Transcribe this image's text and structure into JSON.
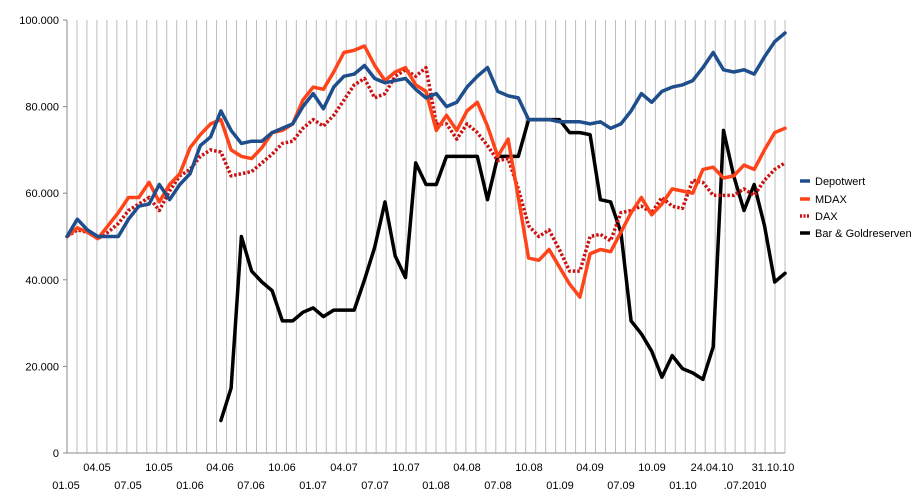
{
  "chart_data": {
    "type": "line",
    "title": "",
    "xlabel": "",
    "ylabel": "",
    "ylim": [
      0,
      100000
    ],
    "y_ticks": [
      "0",
      "20.000",
      "40.000",
      "60.000",
      "80.000",
      "100.000"
    ],
    "grid": "vertical",
    "legend_position": "right",
    "x_labels_upper": [
      "04.05",
      "10.05",
      "04.06",
      "10.06",
      "04.07",
      "10.07",
      "04.08",
      "10.08",
      "04.09",
      "10.09",
      "24.04.10",
      "31.10.10"
    ],
    "x_labels_lower": [
      "01.05",
      "07.05",
      "01.06",
      "07.06",
      "01.07",
      "07.07",
      "01.08",
      "07.08",
      "01.09",
      "07.09",
      "01.10",
      ".07.2010"
    ],
    "series": [
      {
        "name": "Depotwert",
        "color": "#1f4e8c",
        "style": "solid",
        "values": [
          50000,
          54000,
          51500,
          50000,
          50000,
          50000,
          54000,
          57000,
          57500,
          62000,
          58500,
          62000,
          64500,
          71000,
          73000,
          79000,
          74500,
          71500,
          72000,
          72000,
          74000,
          75000,
          76000,
          80000,
          83000,
          79500,
          84500,
          87000,
          87500,
          89500,
          86500,
          85500,
          86000,
          86500,
          84000,
          82000,
          83000,
          80000,
          81000,
          84500,
          87000,
          89000,
          83500,
          82500,
          82000,
          77000,
          77000,
          77000,
          76500,
          76500,
          76500,
          76000,
          76500,
          75000,
          76000,
          79000,
          83000,
          81000,
          83500,
          84500,
          85000,
          86000,
          89000,
          92500,
          88500,
          88000,
          88500,
          87500,
          91500,
          95000,
          97000
        ]
      },
      {
        "name": "MDAX",
        "color": "#ff4419",
        "style": "solid",
        "values": [
          50000,
          52000,
          51000,
          49500,
          52500,
          55500,
          59000,
          59000,
          62500,
          58000,
          62000,
          64500,
          70500,
          73500,
          76000,
          77000,
          70000,
          68500,
          68000,
          70500,
          74000,
          74500,
          76000,
          81500,
          84500,
          84000,
          88000,
          92500,
          93000,
          94000,
          89500,
          86000,
          88000,
          89000,
          85000,
          83500,
          74500,
          78000,
          74500,
          79000,
          81000,
          75500,
          68500,
          72500,
          59000,
          45000,
          44500,
          47000,
          43000,
          39000,
          36000,
          46000,
          47000,
          46500,
          51000,
          55500,
          59000,
          55000,
          57500,
          61000,
          60500,
          60000,
          65500,
          66000,
          63500,
          64000,
          66500,
          65500,
          70000,
          74000,
          75000
        ]
      },
      {
        "name": "DAX",
        "color": "#cc1111",
        "style": "dotted",
        "values": [
          50000,
          51500,
          51000,
          49500,
          51000,
          53000,
          56000,
          57500,
          59000,
          56000,
          60500,
          64000,
          65500,
          68500,
          70000,
          69500,
          64000,
          64500,
          65000,
          67000,
          69000,
          71500,
          72000,
          75000,
          77000,
          75500,
          78000,
          81500,
          85000,
          86500,
          82000,
          83000,
          87000,
          88500,
          87000,
          89000,
          76000,
          76000,
          72500,
          76000,
          74000,
          71000,
          67500,
          68000,
          61000,
          52500,
          50000,
          51500,
          47000,
          42000,
          42000,
          50000,
          50500,
          49000,
          55500,
          56000,
          57000,
          55500,
          59000,
          57000,
          56500,
          63000,
          62500,
          59500,
          59500,
          59500,
          61000,
          59500,
          63000,
          65500,
          67000
        ]
      },
      {
        "name": "Bar & Goldreserven",
        "color": "#000000",
        "style": "solid",
        "values": [
          null,
          null,
          null,
          null,
          null,
          null,
          null,
          null,
          null,
          null,
          null,
          null,
          null,
          null,
          null,
          7500,
          15000,
          50000,
          42000,
          39500,
          37500,
          30500,
          30500,
          32500,
          33500,
          31500,
          33000,
          33000,
          33000,
          40000,
          47500,
          58000,
          45500,
          40500,
          67000,
          62000,
          62000,
          68500,
          68500,
          68500,
          68500,
          58500,
          68500,
          68500,
          68500,
          77000,
          77000,
          77000,
          77000,
          74000,
          74000,
          73500,
          58500,
          58000,
          51000,
          30500,
          27500,
          23500,
          17500,
          22500,
          19500,
          18500,
          17000,
          24500,
          74500,
          64000,
          56000,
          62000,
          52500,
          39500,
          41500
        ]
      }
    ]
  }
}
